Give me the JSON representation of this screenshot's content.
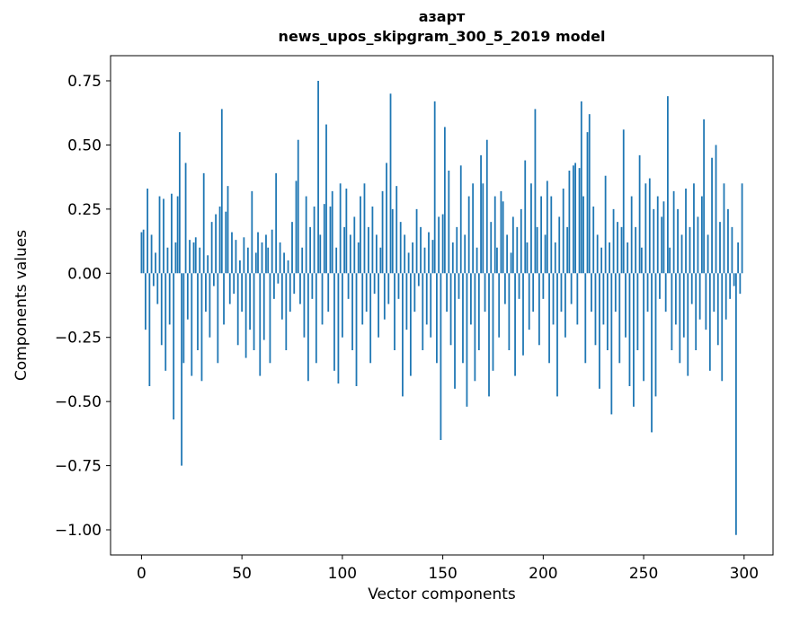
{
  "chart_data": {
    "type": "bar",
    "title": "азарт",
    "subtitle": "news_upos_skipgram_300_5_2019 model",
    "xlabel": "Vector components",
    "ylabel": "Components values",
    "bar_color": "#1f77b4",
    "n_components": 300,
    "xlim": [
      -15.4,
      314.4
    ],
    "ylim": [
      -1.098,
      0.848
    ],
    "xtick_values": [
      0,
      50,
      100,
      150,
      200,
      250,
      300
    ],
    "xtick_labels": [
      "0",
      "50",
      "100",
      "150",
      "200",
      "250",
      "300"
    ],
    "ytick_values": [
      0.75,
      0.5,
      0.25,
      0.0,
      -0.25,
      -0.5,
      -0.75,
      -1.0
    ],
    "ytick_labels": [
      "0.75",
      "0.50",
      "0.25",
      "0.00",
      "−0.25",
      "−0.50",
      "−0.75",
      "−1.00"
    ],
    "values": [
      0.16,
      0.17,
      -0.22,
      0.33,
      -0.44,
      0.15,
      -0.05,
      0.08,
      -0.12,
      0.3,
      -0.28,
      0.29,
      -0.38,
      0.1,
      -0.2,
      0.31,
      -0.57,
      0.12,
      0.3,
      0.55,
      -0.75,
      -0.35,
      0.43,
      -0.18,
      0.13,
      -0.4,
      0.12,
      0.14,
      -0.3,
      0.1,
      -0.42,
      0.39,
      -0.15,
      0.07,
      -0.25,
      0.2,
      -0.05,
      0.23,
      -0.35,
      0.26,
      0.64,
      -0.2,
      0.24,
      0.34,
      -0.12,
      0.16,
      -0.08,
      0.13,
      -0.28,
      0.05,
      -0.15,
      0.14,
      -0.33,
      0.1,
      -0.22,
      0.32,
      -0.3,
      0.08,
      0.16,
      -0.4,
      0.12,
      -0.26,
      0.15,
      0.1,
      -0.35,
      0.17,
      -0.1,
      0.39,
      -0.04,
      0.12,
      -0.18,
      0.08,
      -0.3,
      0.05,
      -0.15,
      0.2,
      -0.08,
      0.36,
      0.52,
      -0.12,
      0.1,
      -0.25,
      0.3,
      -0.42,
      0.18,
      -0.1,
      0.26,
      -0.35,
      0.75,
      0.15,
      -0.2,
      0.27,
      0.58,
      -0.15,
      0.26,
      0.32,
      -0.38,
      0.1,
      -0.43,
      0.35,
      -0.25,
      0.18,
      0.33,
      -0.1,
      0.15,
      -0.3,
      0.22,
      -0.44,
      0.12,
      0.3,
      -0.2,
      0.35,
      -0.15,
      0.18,
      -0.35,
      0.26,
      -0.08,
      0.15,
      -0.25,
      0.1,
      0.32,
      -0.18,
      0.43,
      -0.12,
      0.7,
      0.25,
      -0.3,
      0.34,
      -0.1,
      0.2,
      -0.48,
      0.15,
      -0.22,
      0.08,
      -0.4,
      0.12,
      -0.15,
      0.25,
      -0.05,
      0.18,
      -0.3,
      0.1,
      -0.2,
      0.16,
      -0.25,
      0.13,
      0.67,
      -0.35,
      0.22,
      -0.65,
      0.23,
      0.57,
      -0.15,
      0.4,
      -0.28,
      0.12,
      -0.45,
      0.18,
      -0.1,
      0.42,
      -0.35,
      0.15,
      -0.52,
      0.3,
      -0.2,
      0.35,
      -0.42,
      0.1,
      -0.3,
      0.46,
      0.35,
      -0.15,
      0.52,
      -0.48,
      0.2,
      -0.38,
      0.3,
      0.1,
      -0.25,
      0.32,
      0.28,
      -0.12,
      0.15,
      -0.3,
      0.08,
      0.22,
      -0.4,
      0.18,
      -0.1,
      0.25,
      -0.32,
      0.44,
      0.12,
      -0.22,
      0.35,
      -0.15,
      0.64,
      0.18,
      -0.28,
      0.3,
      -0.1,
      0.15,
      0.36,
      -0.35,
      0.3,
      -0.2,
      0.12,
      -0.48,
      0.22,
      -0.15,
      0.33,
      -0.25,
      0.18,
      0.4,
      -0.12,
      0.42,
      0.43,
      -0.2,
      0.41,
      0.67,
      0.3,
      -0.35,
      0.55,
      0.62,
      -0.15,
      0.26,
      -0.28,
      0.15,
      -0.45,
      0.1,
      -0.2,
      0.38,
      -0.3,
      0.12,
      -0.55,
      0.25,
      -0.15,
      0.2,
      -0.35,
      0.18,
      0.56,
      -0.25,
      0.12,
      -0.44,
      0.3,
      -0.52,
      0.18,
      -0.3,
      0.46,
      0.1,
      -0.42,
      0.35,
      -0.15,
      0.37,
      -0.62,
      0.25,
      -0.48,
      0.3,
      -0.1,
      0.22,
      0.28,
      -0.15,
      0.69,
      0.1,
      -0.3,
      0.32,
      -0.2,
      0.25,
      -0.35,
      0.15,
      -0.25,
      0.33,
      -0.4,
      0.18,
      -0.12,
      0.35,
      -0.3,
      0.22,
      -0.18,
      0.3,
      0.6,
      -0.22,
      0.15,
      -0.38,
      0.45,
      -0.15,
      0.5,
      -0.28,
      0.2,
      -0.42,
      0.35,
      -0.18,
      0.25,
      -0.1,
      0.18,
      -0.05,
      -1.02,
      0.12,
      -0.08,
      0.35
    ]
  }
}
